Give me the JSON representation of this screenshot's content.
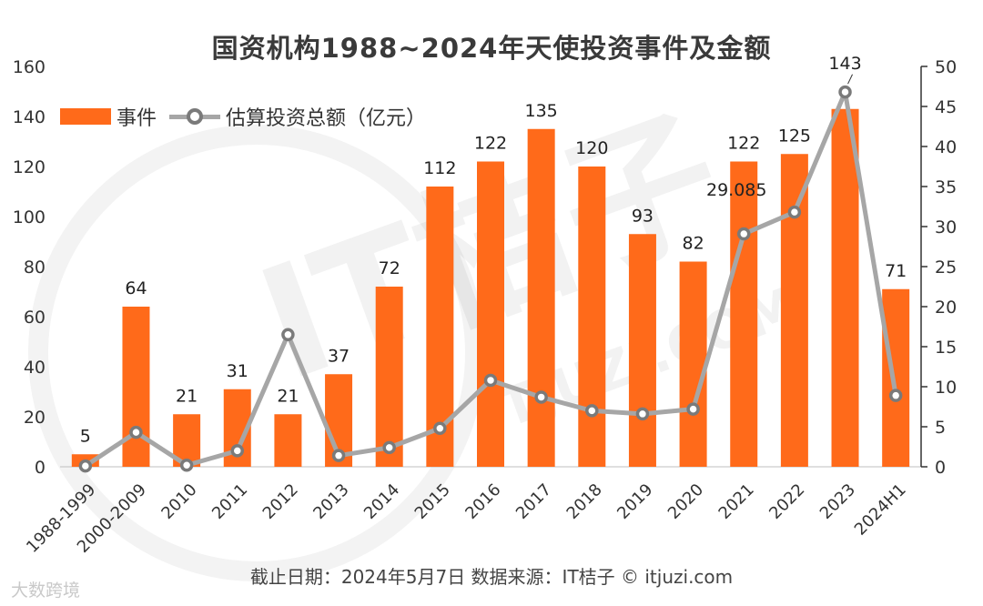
{
  "chart_data": {
    "type": "bar+line",
    "title": "国资机构1988~2024年天使投资事件及金额",
    "categories": [
      "1988-1999",
      "2000-2009",
      "2010",
      "2011",
      "2012",
      "2013",
      "2014",
      "2015",
      "2016",
      "2017",
      "2018",
      "2019",
      "2020",
      "2021",
      "2022",
      "2023",
      "2024H1"
    ],
    "series": [
      {
        "name": "事件",
        "type": "bar",
        "axis": "left",
        "color": "#FF6A1A",
        "values": [
          5,
          64,
          21,
          31,
          21,
          37,
          72,
          112,
          122,
          135,
          120,
          93,
          82,
          122,
          125,
          143,
          71
        ],
        "labels": [
          "5",
          "64",
          "21",
          "31",
          "21",
          "37",
          "72",
          "112",
          "122",
          "135",
          "120",
          "93",
          "82",
          "122",
          "125",
          "143",
          "71"
        ]
      },
      {
        "name": "估算投资总额（亿元）",
        "type": "line",
        "axis": "right",
        "color": "#A6A6A6",
        "values": [
          0.1,
          4.3,
          0.2,
          2.0,
          16.5,
          1.4,
          2.4,
          4.8,
          10.8,
          8.7,
          7.0,
          6.6,
          7.2,
          29.085,
          31.8,
          46.8,
          8.9
        ],
        "point_labels": [
          "",
          "",
          "",
          "",
          "",
          "",
          "",
          "",
          "",
          "",
          "",
          "",
          "",
          "29.085",
          "",
          "",
          ""
        ]
      }
    ],
    "y_left": {
      "min": 0,
      "max": 160,
      "ticks": [
        "0",
        "20",
        "40",
        "60",
        "80",
        "100",
        "120",
        "140",
        "160"
      ]
    },
    "y_right": {
      "min": 0,
      "max": 50,
      "ticks": [
        "0",
        "5",
        "10",
        "15",
        "20",
        "25",
        "30",
        "35",
        "40",
        "45",
        "50"
      ]
    },
    "grid": false,
    "legend_position": "top-left"
  },
  "legend": {
    "bar_label": "事件",
    "line_label": "估算投资总额（亿元）"
  },
  "footer": "截止日期：2024年5月7日    数据来源：IT桔子 © itjuzi.com",
  "watermark": {
    "main": "IT桔子",
    "sub": "ITJUZI.COM",
    "corner": "大数跨境"
  }
}
